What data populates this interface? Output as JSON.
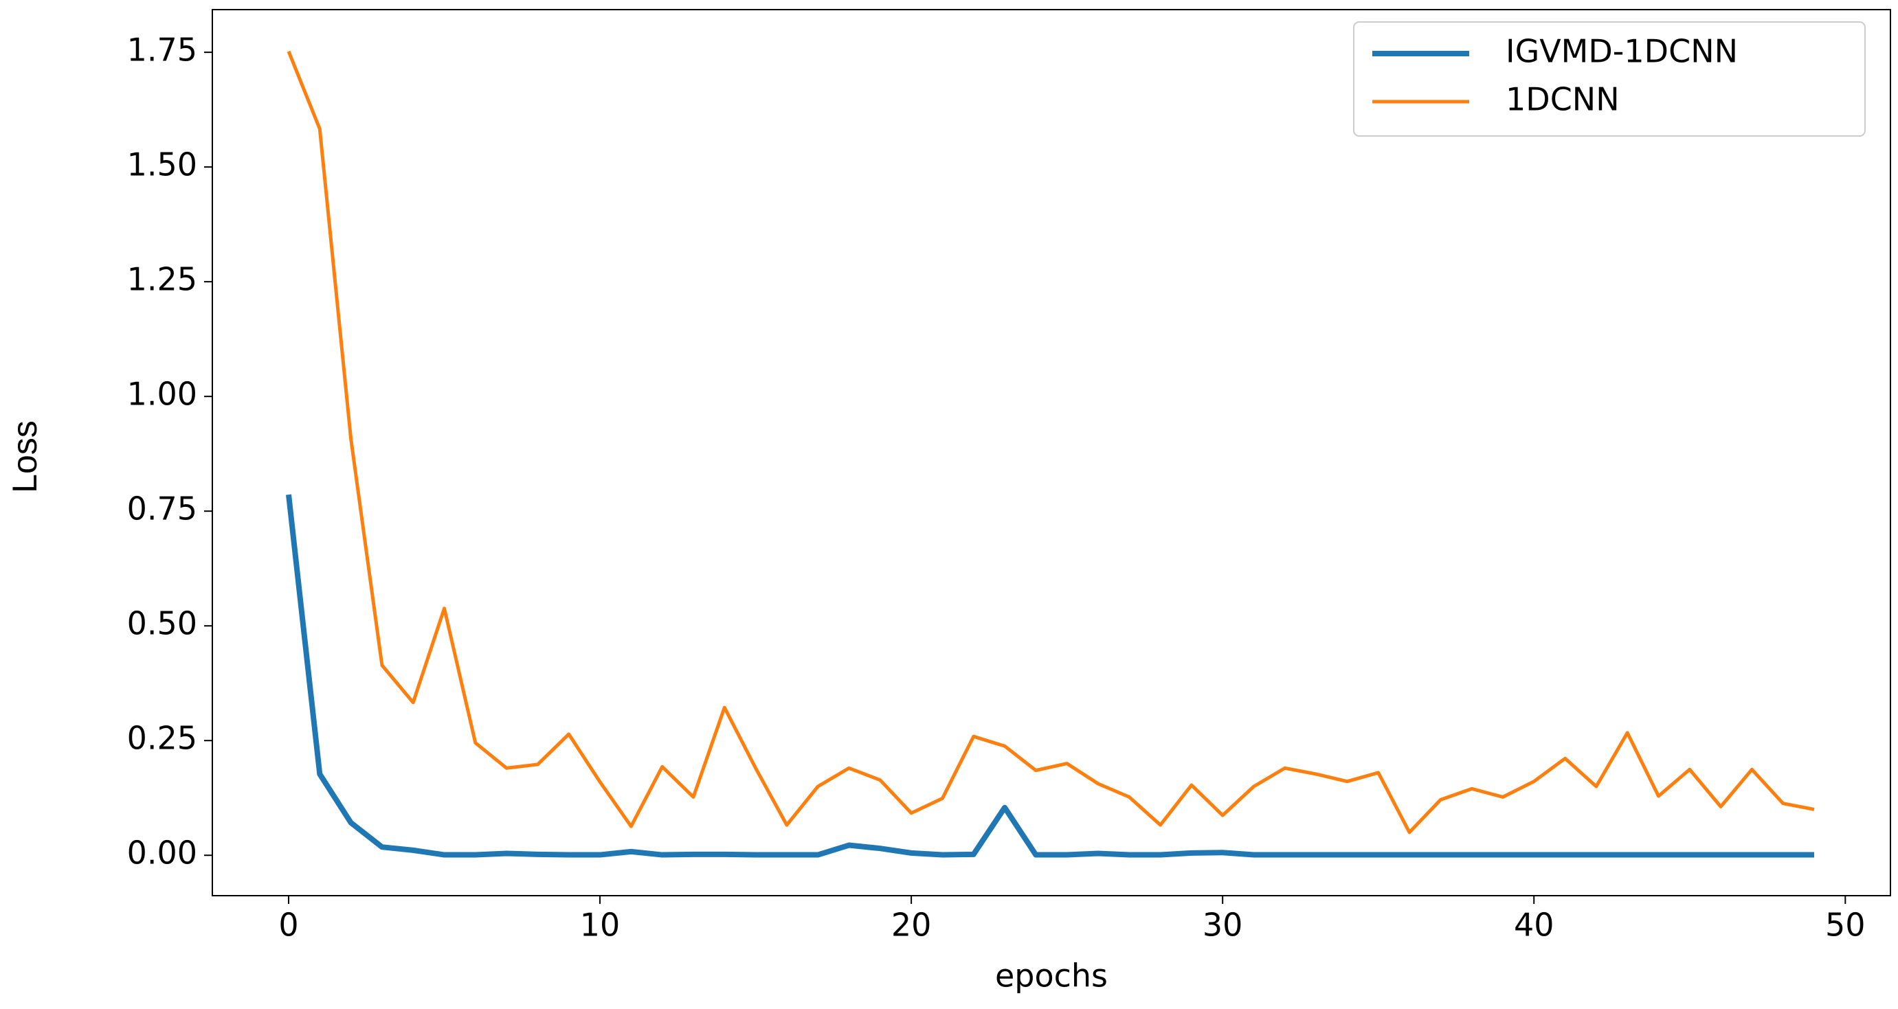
{
  "chart_data": {
    "type": "line",
    "xlabel": "epochs",
    "ylabel": "Loss",
    "x": [
      0,
      1,
      2,
      3,
      4,
      5,
      6,
      7,
      8,
      9,
      10,
      11,
      12,
      13,
      14,
      15,
      16,
      17,
      18,
      19,
      20,
      21,
      22,
      23,
      24,
      25,
      26,
      27,
      28,
      29,
      30,
      31,
      32,
      33,
      34,
      35,
      36,
      37,
      38,
      39,
      40,
      41,
      42,
      43,
      44,
      45,
      46,
      47,
      48,
      49
    ],
    "series": [
      {
        "name": "IGVMD-1DCNN",
        "color": "#1f77b4",
        "values": [
          0.786,
          0.177,
          0.071,
          0.018,
          0.011,
          0.001,
          0.001,
          0.004,
          0.002,
          0.001,
          0.001,
          0.008,
          0.001,
          0.002,
          0.002,
          0.001,
          0.001,
          0.001,
          0.022,
          0.015,
          0.005,
          0.001,
          0.002,
          0.104,
          0.001,
          0.001,
          0.004,
          0.001,
          0.001,
          0.005,
          0.006,
          0.001,
          0.001,
          0.001,
          0.001,
          0.001,
          0.001,
          0.001,
          0.001,
          0.001,
          0.001,
          0.001,
          0.001,
          0.001,
          0.001,
          0.001,
          0.001,
          0.001,
          0.001,
          0.001
        ]
      },
      {
        "name": "1DCNN",
        "color": "#ff7f0e",
        "values": [
          1.752,
          1.583,
          0.908,
          0.414,
          0.333,
          0.538,
          0.245,
          0.19,
          0.198,
          0.264,
          0.16,
          0.063,
          0.193,
          0.127,
          0.322,
          0.19,
          0.066,
          0.15,
          0.19,
          0.164,
          0.092,
          0.124,
          0.259,
          0.238,
          0.185,
          0.2,
          0.156,
          0.127,
          0.066,
          0.153,
          0.087,
          0.15,
          0.19,
          0.177,
          0.161,
          0.18,
          0.05,
          0.121,
          0.145,
          0.127,
          0.161,
          0.211,
          0.15,
          0.267,
          0.129,
          0.187,
          0.106,
          0.187,
          0.113,
          0.1
        ]
      }
    ],
    "xlim": [
      -2.45,
      51.45
    ],
    "xticks": [
      0,
      10,
      20,
      30,
      40,
      50
    ],
    "ylim": [
      -0.088,
      1.843
    ],
    "yticks": [
      {
        "value": 0,
        "label": "0.00"
      },
      {
        "value": 0.25,
        "label": "0.25"
      },
      {
        "value": 0.5,
        "label": "0.50"
      },
      {
        "value": 0.75,
        "label": "0.75"
      },
      {
        "value": 1.0,
        "label": "1.00"
      },
      {
        "value": 1.25,
        "label": "1.25"
      },
      {
        "value": 1.5,
        "label": "1.50"
      },
      {
        "value": 1.75,
        "label": "1.75"
      }
    ],
    "legend": "upper right"
  }
}
